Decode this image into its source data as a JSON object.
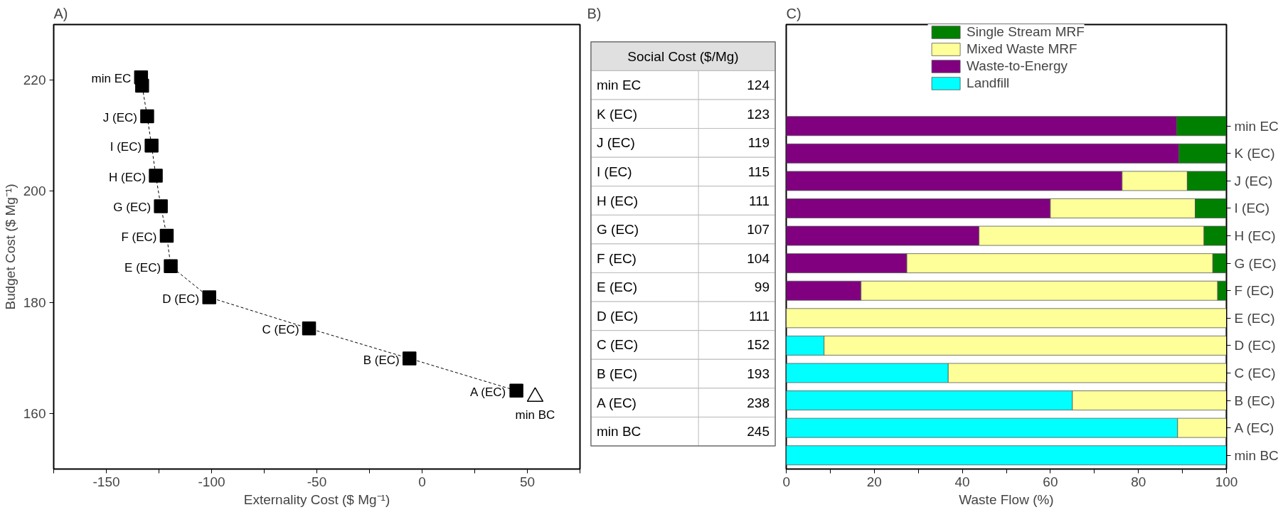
{
  "chart_data": [
    {
      "type": "scatter",
      "title": "A)",
      "xlabel": "Externality Cost ($ Mg⁻¹)",
      "ylabel": "Budget Cost ($ Mg⁻¹)",
      "xlim": [
        -175,
        75
      ],
      "xticks": [
        {
          "value": -175,
          "label": null
        },
        -150,
        {
          "value": -125,
          "label": null
        },
        -100,
        {
          "value": -75,
          "label": null
        },
        -50,
        {
          "value": -25,
          "label": null
        },
        0,
        {
          "value": 25,
          "label": null
        },
        50,
        {
          "value": 75,
          "label": null
        }
      ],
      "ylim": [
        150,
        230
      ],
      "yticks": [
        160,
        180,
        200,
        220
      ],
      "grid": false,
      "legend": false,
      "series": [
        {
          "type": "line",
          "marker": "square",
          "line_style": "dashed",
          "color": "#000000",
          "x": [
            -133.5,
            -133,
            -130.6,
            -128.5,
            -126.5,
            -124.1,
            -121.3,
            -119.4,
            -101.1,
            -53.7,
            -6,
            44.8
          ],
          "values": [
            220.5,
            219,
            213.5,
            208.2,
            202.8,
            197.3,
            192,
            186.5,
            180.9,
            175.3,
            169.9,
            164.1
          ]
        },
        {
          "type": "scatter",
          "marker": "triangle",
          "color": "#000000",
          "x": [
            53.7
          ],
          "values": [
            163
          ]
        }
      ],
      "annotations": [
        {
          "text": "min EC",
          "x": -133.5,
          "y": 220.5
        },
        {
          "text": "J (EC)",
          "x": -130.6,
          "y": 213.5
        },
        {
          "text": "I (EC)",
          "x": -128.5,
          "y": 208.2
        },
        {
          "text": "H (EC)",
          "x": -126.5,
          "y": 202.8
        },
        {
          "text": "G (EC)",
          "x": -124.1,
          "y": 197.3
        },
        {
          "text": "F (EC)",
          "x": -121.3,
          "y": 192
        },
        {
          "text": "E (EC)",
          "x": -119.4,
          "y": 186.5
        },
        {
          "text": "D (EC)",
          "x": -101.1,
          "y": 180.9
        },
        {
          "text": "C (EC)",
          "x": -53.7,
          "y": 175.3
        },
        {
          "text": "B (EC)",
          "x": -6,
          "y": 169.9
        },
        {
          "text": "A (EC)",
          "x": 44.8,
          "y": 164.1
        },
        {
          "text": "min BC",
          "x": 53.7,
          "y": 163
        }
      ]
    },
    {
      "type": "other",
      "title": "B)",
      "subtitle": "Social Cost ($/Mg)",
      "categories": [
        "min EC",
        "K (EC)",
        "J (EC)",
        "I (EC)",
        "H (EC)",
        "G (EC)",
        "F (EC)",
        "E (EC)",
        "D (EC)",
        "C (EC)",
        "B (EC)",
        "A (EC)",
        "min BC"
      ],
      "values": [
        124,
        123,
        119,
        115,
        111,
        107,
        104,
        99,
        111,
        152,
        193,
        238,
        245
      ],
      "data_labels": true
    },
    {
      "type": "bar",
      "orientation": "horizontal",
      "stacked": true,
      "title": "C)",
      "xlabel": "Waste Flow (%)",
      "xlim": [
        0,
        100
      ],
      "xticks": [
        0,
        {
          "value": 10,
          "label": null
        },
        20,
        {
          "value": 30,
          "label": null
        },
        40,
        {
          "value": 50,
          "label": null
        },
        60,
        {
          "value": 70,
          "label": null
        },
        80,
        {
          "value": 90,
          "label": null
        },
        100
      ],
      "grid": false,
      "legend": "top",
      "categories": [
        "min EC",
        "K (EC)",
        "J (EC)",
        "I (EC)",
        "H (EC)",
        "G (EC)",
        "F (EC)",
        "E (EC)",
        "D (EC)",
        "C (EC)",
        "B (EC)",
        "A (EC)",
        "min BC"
      ],
      "series": [
        {
          "name": "Landfill",
          "color": "#00ffff",
          "values": [
            0,
            0,
            0,
            0,
            0,
            0,
            0,
            0,
            8.6,
            36.8,
            65,
            88.9,
            100
          ]
        },
        {
          "name": "Waste-to-Energy",
          "color": "#800080",
          "values": [
            88.7,
            89.2,
            76.3,
            60,
            43.8,
            27.4,
            17,
            0,
            0,
            0,
            0,
            0,
            0
          ]
        },
        {
          "name": "Mixed Waste MRF",
          "color": "#ffff99",
          "values": [
            0,
            0,
            14.8,
            32.9,
            51.1,
            69.5,
            81,
            100,
            91.4,
            63.2,
            35,
            11.1,
            0
          ]
        },
        {
          "name": "Single Stream MRF",
          "color": "#008000",
          "values": [
            11.3,
            10.8,
            8.9,
            7.1,
            5.1,
            3.1,
            2,
            0,
            0,
            0,
            0,
            0,
            0
          ]
        }
      ]
    }
  ]
}
